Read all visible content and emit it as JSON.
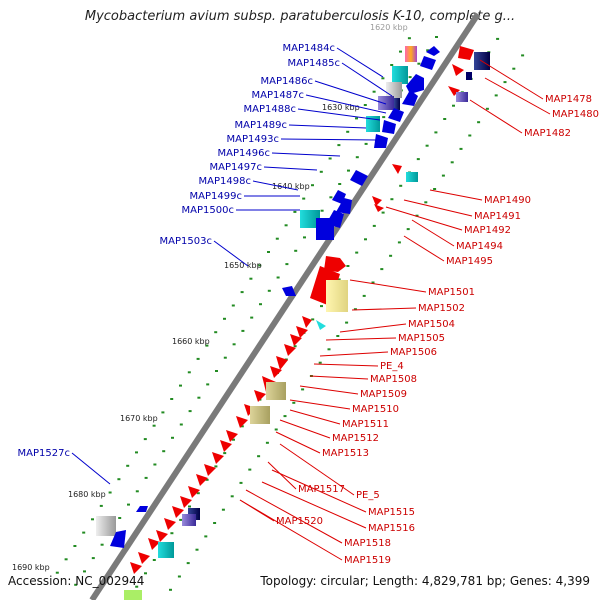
{
  "title": "Mycobacterium avium subsp. paratuberculosis K-10, complete g...",
  "accession_label": "Accession: NC_002944",
  "topology_label": "Topology: circular; Length: 4,829,781 bp; Genes: 4,399",
  "colors": {
    "forward_gene": "#ee0000",
    "reverse_gene": "#0000dd",
    "backbone": "#888888",
    "tick_dot": "#228b22",
    "label_forward": "#cc0000",
    "label_reverse": "#0000aa"
  },
  "kbp_markers": [
    "1620 kbp",
    "1630 kbp",
    "1640 kbp",
    "1650 kbp",
    "1660 kbp",
    "1670 kbp",
    "1680 kbp",
    "1690 kbp"
  ],
  "reverse_labels": [
    "MAP1484c",
    "MAP1485c",
    "MAP1486c",
    "MAP1487c",
    "MAP1488c",
    "MAP1489c",
    "MAP1493c",
    "MAP1496c",
    "MAP1497c",
    "MAP1498c",
    "MAP1499c",
    "MAP1500c",
    "MAP1503c",
    "MAP1527c"
  ],
  "forward_labels": [
    "MAP1478",
    "MAP1480",
    "MAP1482",
    "MAP1490",
    "MAP1491",
    "MAP1492",
    "MAP1494",
    "MAP1495",
    "MAP1501",
    "MAP1502",
    "MAP1504",
    "MAP1505",
    "MAP1506",
    "PE_4",
    "MAP1508",
    "MAP1509",
    "MAP1510",
    "MAP1511",
    "MAP1512",
    "MAP1513",
    "MAP1517",
    "PE_5",
    "MAP1515",
    "MAP1516",
    "MAP1520",
    "MAP1518",
    "MAP1519"
  ]
}
